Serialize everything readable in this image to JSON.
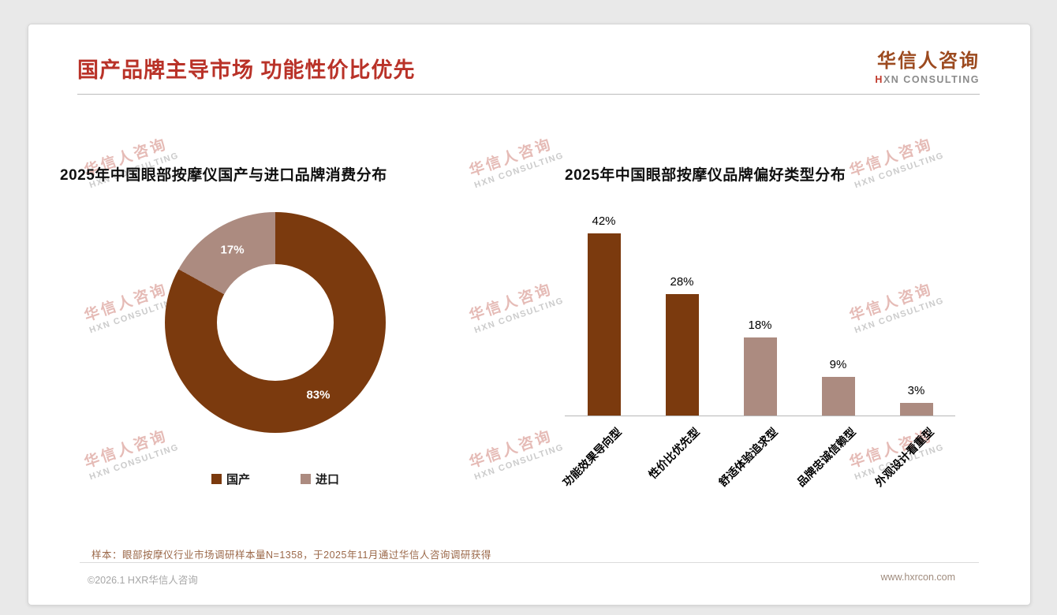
{
  "page": {
    "title": "国产品牌主导市场 功能性价比优先",
    "logo": {
      "name": "华信人咨询",
      "mark": "H",
      "sub": "XN CONSULTING"
    },
    "watermark": {
      "line1": "华信人咨询",
      "line2": "HXN CONSULTING"
    },
    "note": "样本：眼部按摩仪行业市场调研样本量N=1358，于2025年11月通过华信人咨询调研获得",
    "footer": {
      "left": "©2026.1 HXR华信人咨询",
      "right": "www.hxrcon.com"
    }
  },
  "colors": {
    "primary": "#7B3A0E",
    "secondary": "#AC8B80",
    "title_red": "#B93228",
    "logo_brown": "#9C4A1F"
  },
  "chart_data": [
    {
      "type": "pie",
      "title": "2025年中国眼部按摩仪国产与进口品牌消费分布",
      "labels": [
        "国产",
        "进口"
      ],
      "values": [
        83,
        17
      ],
      "unit": "%",
      "colors": [
        "#7B3A0E",
        "#AC8B80"
      ],
      "donut": true,
      "legend_position": "bottom"
    },
    {
      "type": "bar",
      "title": "2025年中国眼部按摩仪品牌偏好类型分布",
      "categories": [
        "功能效果导向型",
        "性价比优先型",
        "舒适体验追求型",
        "品牌忠诚信赖型",
        "外观设计看重型"
      ],
      "values": [
        42,
        28,
        18,
        9,
        3
      ],
      "unit": "%",
      "bar_colors": [
        "#7B3A0E",
        "#7B3A0E",
        "#AC8B80",
        "#AC8B80",
        "#AC8B80"
      ],
      "ylim": [
        0,
        45
      ],
      "grid": false,
      "axis": "bottom-only"
    }
  ]
}
